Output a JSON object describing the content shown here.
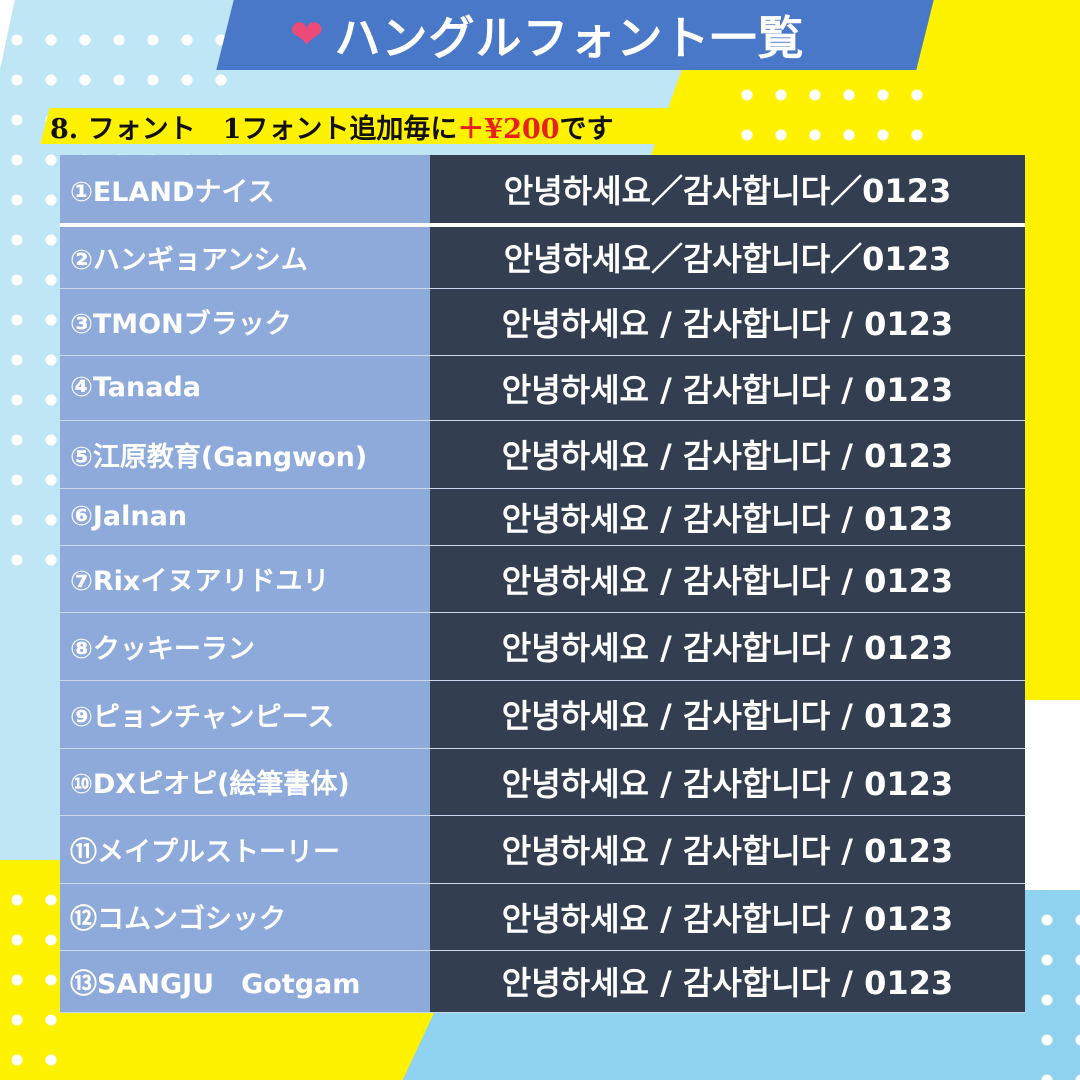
{
  "header": {
    "title": "ハングルフォント一覧",
    "icon": "heart-icon",
    "band_color": "#4a78c8"
  },
  "subtitle": {
    "prefix": "8. フォント　1フォント追加毎に",
    "price": "＋¥200",
    "suffix": "です",
    "price_color": "#e8201a"
  },
  "fonts": [
    {
      "name": "①ELANDナイス",
      "sample": "안녕하세요／감사합니다／0123"
    },
    {
      "name": "②ハンギョアンシム",
      "sample": "안녕하세요／감사합니다／0123"
    },
    {
      "name": "③TMONブラック",
      "sample": "안녕하세요 / 감사합니다 / 0123"
    },
    {
      "name": "④Tanada",
      "sample": "안녕하세요 / 감사합니다 / 0123"
    },
    {
      "name": "⑤江原教育(Gangwon)",
      "sample": "안녕하세요 / 감사합니다 / 0123"
    },
    {
      "name": "⑥Jalnan",
      "sample": "안녕하세요 / 감사합니다 / 0123"
    },
    {
      "name": "⑦Rixイヌアリドユリ",
      "sample": "안녕하세요 / 감사합니다 / 0123"
    },
    {
      "name": "⑧クッキーラン",
      "sample": "안녕하세요 / 감사합니다 / 0123"
    },
    {
      "name": "⑨ピョンチャンピース",
      "sample": "안녕하세요 / 감사합니다 / 0123"
    },
    {
      "name": "⑩DXピオピ(絵筆書体)",
      "sample": "안녕하세요 / 감사합니다 / 0123"
    },
    {
      "name": "⑪メイプルストーリー",
      "sample": "안녕하세요 / 감사합니다 / 0123"
    },
    {
      "name": "⑫コムンゴシック",
      "sample": "안녕하세요 / 감사합니다 / 0123"
    },
    {
      "name": "⑬SANGJU　Gotgam",
      "sample": "안녕하세요 / 감사합니다 / 0123"
    }
  ]
}
